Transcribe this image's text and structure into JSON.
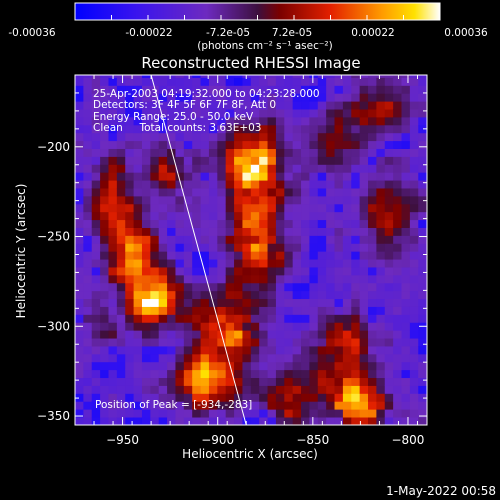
{
  "colorbar": {
    "ticks": [
      "-0.00036",
      "-0.00022",
      "-7.2e-05",
      "7.2e-05",
      "0.00022",
      "0.00036"
    ],
    "unit_label": "(photons cm⁻² s⁻¹ asec⁻²)",
    "range": [
      -0.00036,
      0.00036
    ]
  },
  "chart_data": {
    "type": "heatmap",
    "title": "Reconstructed RHESSI Image",
    "xlabel": "Heliocentric X (arcsec)",
    "ylabel": "Heliocentric Y (arcsec)",
    "xlim": [
      -975,
      -790
    ],
    "ylim": [
      -355,
      -160
    ],
    "x_ticks": [
      -950,
      -900,
      -850,
      -800
    ],
    "y_ticks": [
      -200,
      -250,
      -300,
      -350
    ],
    "x_tick_labels": [
      "−950",
      "−900",
      "−850",
      "−800"
    ],
    "y_tick_labels": [
      "−200",
      "−250",
      "−300",
      "−350"
    ],
    "annotations": [
      "25-Apr-2003 04:19:32.000 to 04:23:28.000",
      "Detectors: 3F 4F 5F 6F 7F 8F, Att 0",
      "Energy Range: 25.0 - 50.0 keV",
      "Clean     Total counts: 3.63E+03",
      "Position of Peak = [-934,-283]"
    ],
    "limb_line": {
      "x": [
        -935,
        -885
      ],
      "y": [
        -160,
        -355
      ]
    },
    "peak": {
      "x": -934,
      "y": -283
    },
    "blobs": [
      {
        "x": -935,
        "y": -283,
        "sx": 9,
        "sy": 12,
        "a": 1.0
      },
      {
        "x": -945,
        "y": -258,
        "sx": 10,
        "sy": 12,
        "a": 0.75
      },
      {
        "x": -955,
        "y": -225,
        "sx": 9,
        "sy": 14,
        "a": 0.55
      },
      {
        "x": -962,
        "y": -300,
        "sx": 7,
        "sy": 8,
        "a": 0.4
      },
      {
        "x": -882,
        "y": -208,
        "sx": 11,
        "sy": 14,
        "a": 0.95
      },
      {
        "x": -878,
        "y": -250,
        "sx": 10,
        "sy": 18,
        "a": 0.85
      },
      {
        "x": -895,
        "y": -300,
        "sx": 12,
        "sy": 14,
        "a": 0.8
      },
      {
        "x": -905,
        "y": -330,
        "sx": 13,
        "sy": 10,
        "a": 0.85
      },
      {
        "x": -860,
        "y": -340,
        "sx": 9,
        "sy": 10,
        "a": 0.55
      },
      {
        "x": -832,
        "y": -320,
        "sx": 11,
        "sy": 16,
        "a": 0.7
      },
      {
        "x": -825,
        "y": -345,
        "sx": 10,
        "sy": 8,
        "a": 0.7
      },
      {
        "x": -818,
        "y": -180,
        "sx": 12,
        "sy": 10,
        "a": 0.6
      },
      {
        "x": -812,
        "y": -235,
        "sx": 10,
        "sy": 14,
        "a": 0.55
      },
      {
        "x": -840,
        "y": -200,
        "sx": 8,
        "sy": 10,
        "a": 0.4
      },
      {
        "x": -925,
        "y": -215,
        "sx": 8,
        "sy": 10,
        "a": 0.45
      }
    ]
  },
  "footer": {
    "timestamp": "1-May-2022 00:58"
  }
}
